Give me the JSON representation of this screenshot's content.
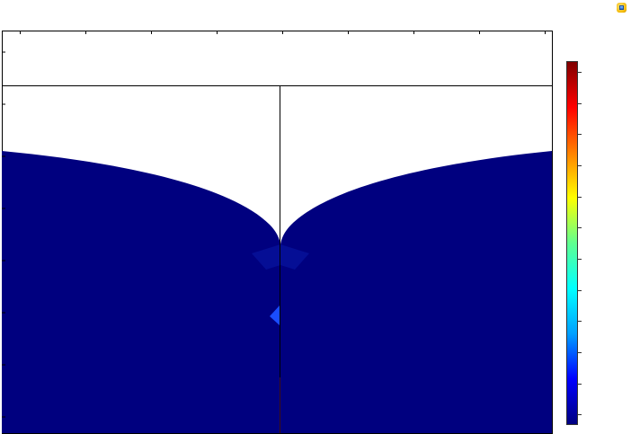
{
  "app": {
    "view": "2D surface plot",
    "toolbar_icon": "graphics-view-icon"
  },
  "colorbar": {
    "colormap": "rainbow",
    "stops": [
      "#000080",
      "#0000ff",
      "#00a0ff",
      "#00ffff",
      "#60ff90",
      "#ffff00",
      "#ff8000",
      "#ff0000",
      "#800000"
    ],
    "tick_count": 12
  },
  "plot": {
    "field_color": "#00007f",
    "highlight_color": "#1a4dff",
    "axis_color": "#000000",
    "x_tick_count": 9,
    "y_tick_count": 8
  }
}
